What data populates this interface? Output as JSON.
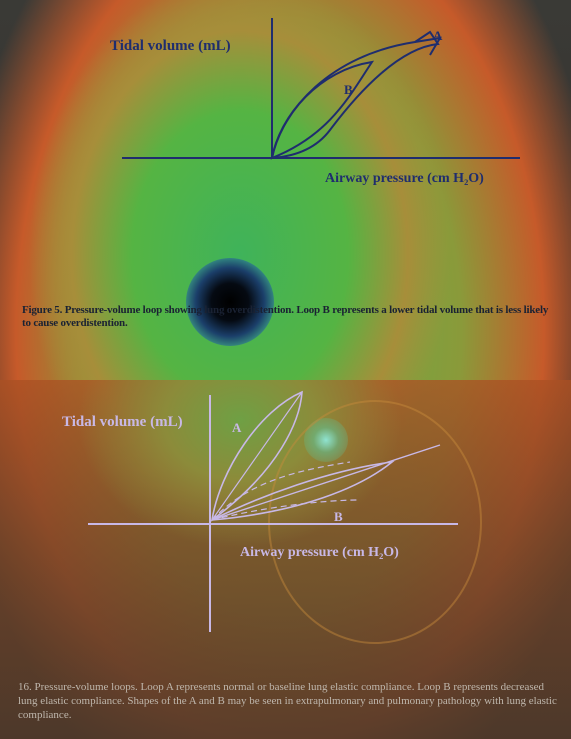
{
  "figure_top": {
    "y_axis_label": "Tidal volume (mL)",
    "x_axis_label": "Airway pressure (cm H₂O)",
    "loop_labels": [
      "A",
      "B"
    ]
  },
  "caption_top": "Figure 5. Pressure-volume loop showing lung overdistention. Loop B represents a lower tidal volume that is less likely to cause overdistention.",
  "figure_bottom": {
    "y_axis_label": "Tidal volume (mL)",
    "x_axis_label": "Airway pressure (cm H₂O)",
    "loop_labels": [
      "A",
      "B"
    ]
  },
  "caption_bottom": "16. Pressure-volume loops. Loop A represents normal or baseline lung elastic compliance. Loop B represents decreased lung elastic compliance. Shapes of the A and B may be seen in extrapulmonary and pulmonary pathology with lung elastic compliance.",
  "colors": {
    "ink": "#1f2d6e",
    "light_ink": "#c8b8e6",
    "caption_dark": "#1a2233",
    "caption_light": "#bfb7ad"
  }
}
